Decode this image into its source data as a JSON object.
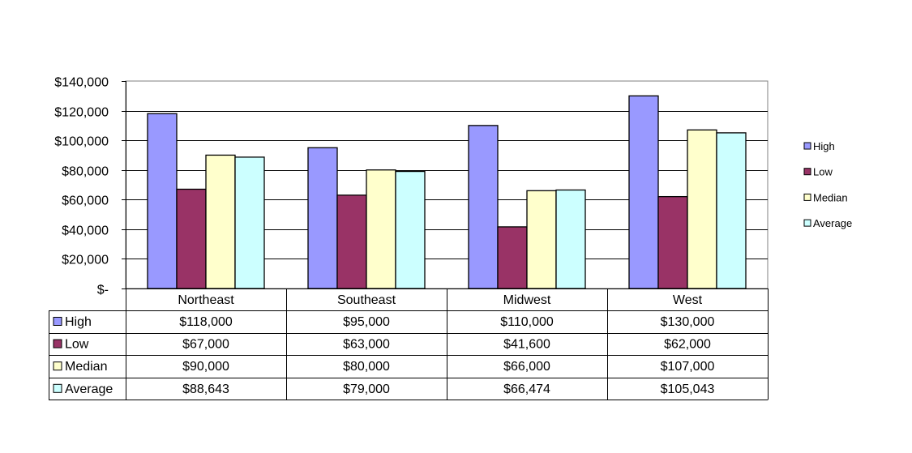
{
  "chart_data": {
    "type": "bar",
    "title": "",
    "xlabel": "",
    "ylabel": "",
    "categories": [
      "Northeast",
      "Southeast",
      "Midwest",
      "West"
    ],
    "ylim": [
      0,
      140000
    ],
    "yticks": [
      0,
      20000,
      40000,
      60000,
      80000,
      100000,
      120000,
      140000
    ],
    "ytick_labels": [
      "$-",
      "$20,000",
      "$40,000",
      "$60,000",
      "$80,000",
      "$100,000",
      "$120,000",
      "$140,000"
    ],
    "grid": true,
    "legend_position": "right",
    "data_table": true,
    "series": [
      {
        "name": "High",
        "color": "#9999ff",
        "values": [
          118000,
          95000,
          110000,
          130000
        ],
        "labels": [
          "$118,000",
          "$95,000",
          "$110,000",
          "$130,000"
        ]
      },
      {
        "name": "Low",
        "color": "#993366",
        "values": [
          67000,
          63000,
          41600,
          62000
        ],
        "labels": [
          "$67,000",
          "$63,000",
          "$41,600",
          "$62,000"
        ]
      },
      {
        "name": "Median",
        "color": "#ffffcc",
        "values": [
          90000,
          80000,
          66000,
          107000
        ],
        "labels": [
          "$90,000",
          "$80,000",
          "$66,000",
          "$107,000"
        ]
      },
      {
        "name": "Average",
        "color": "#ccffff",
        "values": [
          88643,
          79000,
          66474,
          105043
        ],
        "labels": [
          "$88,643",
          "$79,000",
          "$66,474",
          "$105,043"
        ]
      }
    ]
  }
}
